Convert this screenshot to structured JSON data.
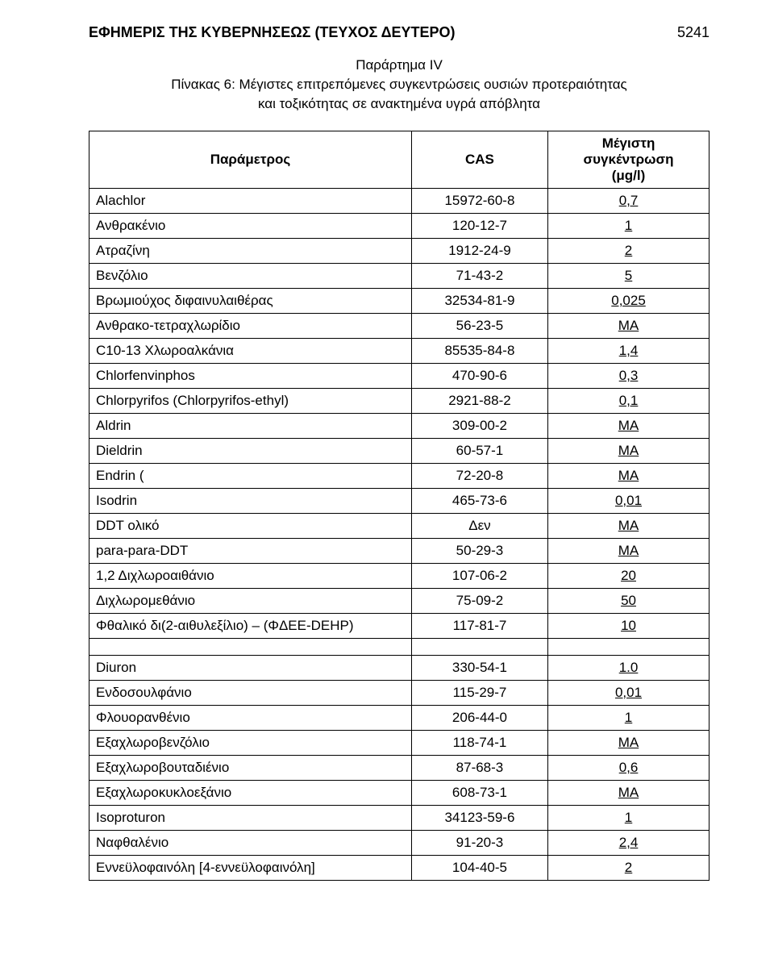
{
  "header": {
    "title": "ΕΦΗΜΕΡΙΣ ΤΗΣ ΚΥΒΕΡΝΗΣΕΩΣ (ΤΕΥΧΟΣ ΔΕΥΤΕΡΟ)",
    "page_number": "5241"
  },
  "subtitle": {
    "line1": "Παράρτημα IV",
    "line2": "Πίνακας 6: Μέγιστες επιτρεπόμενες συγκεντρώσεις ουσιών προτεραιότητας",
    "line3": "και τοξικότητας σε ανακτημένα υγρά απόβλητα"
  },
  "table": {
    "columns": {
      "param": "Παράμετρος",
      "cas": "CAS",
      "value_line1": "Μέγιστη",
      "value_line2": "συγκέντρωση",
      "value_line3": "(μg/l)"
    },
    "rows": [
      {
        "param": "Alachlor",
        "cas": "15972-60-8",
        "value": "0,7"
      },
      {
        "param": "Ανθρακένιο",
        "cas": "120-12-7",
        "value": "1"
      },
      {
        "param": "Ατραζίνη",
        "cas": "1912-24-9",
        "value": "2"
      },
      {
        "param": "Βενζόλιο",
        "cas": "71-43-2",
        "value": "5"
      },
      {
        "param": "Βρωμιούχος διφαινυλαιθέρας",
        "cas": "32534-81-9",
        "value": "0,025"
      },
      {
        "param": "Ανθρακο-τετραχλωρίδιο",
        "cas": "56-23-5",
        "value": "ΜΑ"
      },
      {
        "param": "C10-13 Χλωροαλκάνια",
        "cas": "85535-84-8",
        "value": "1,4"
      },
      {
        "param": "Chlorfenvinphos",
        "cas": "470-90-6",
        "value": "0,3"
      },
      {
        "param": "Chlorpyrifos   (Chlorpyrifos-ethyl)",
        "cas": "2921-88-2",
        "value": "0,1"
      },
      {
        "param": "Aldrin",
        "cas": "309-00-2",
        "value": "ΜΑ"
      },
      {
        "param": "Dieldrin",
        "cas": "60-57-1",
        "value": "ΜΑ"
      },
      {
        "param": "Endrin (",
        "cas": "72-20-8",
        "value": "ΜΑ"
      },
      {
        "param": "Isodrin",
        "cas": "465-73-6",
        "value": "0,01"
      },
      {
        "param": "DDT ολικό",
        "cas": "Δεν",
        "value": "ΜΑ"
      },
      {
        "param": "para-para-DDT",
        "cas": "50-29-3",
        "value": "ΜΑ"
      },
      {
        "param": "1,2 Διχλωροαιθάνιο",
        "cas": "107-06-2",
        "value": "20"
      },
      {
        "param": "Διχλωρομεθάνιο",
        "cas": "75-09-2",
        "value": "50"
      },
      {
        "param": "Φθαλικό δι(2-αιθυλεξίλιο) – (ΦΔΕΕ-DEHP)",
        "cas": "117-81-7",
        "value": "10"
      }
    ],
    "rows2": [
      {
        "param": "Diuron",
        "cas": "330-54-1",
        "value": "1.0"
      },
      {
        "param": "Ενδοσουλφάνιο",
        "cas": "115-29-7",
        "value": "0,01"
      },
      {
        "param": "Φλουορανθένιο",
        "cas": "206-44-0",
        "value": "1"
      },
      {
        "param": "Εξαχλωροβενζόλιο",
        "cas": "118-74-1",
        "value": "ΜΑ"
      },
      {
        "param": "Εξαχλωροβουταδιένιο",
        "cas": "87-68-3",
        "value": "0,6"
      },
      {
        "param": "Εξαχλωροκυκλοεξάνιο",
        "cas": "608-73-1",
        "value": "ΜΑ"
      },
      {
        "param": "Isoproturon",
        "cas": "34123-59-6",
        "value": "1"
      },
      {
        "param": "Ναφθαλένιο",
        "cas": "91-20-3",
        "value": "2,4"
      },
      {
        "param": "Εννεϋλοφαινόλη          [4-εννεϋλοφαινόλη]",
        "cas": "104-40-5",
        "value": "2"
      }
    ]
  }
}
